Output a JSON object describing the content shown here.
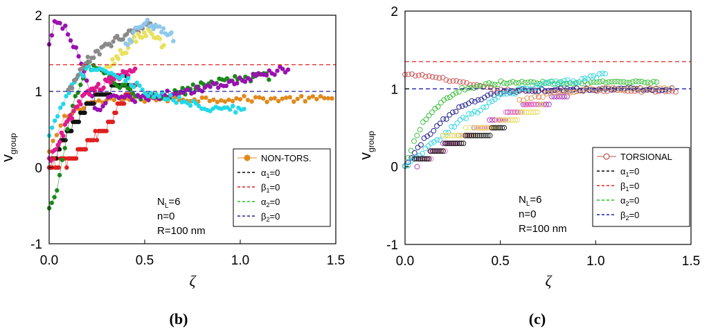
{
  "chart_data": [
    {
      "panel": "b",
      "type": "scatter",
      "panel_label": "(b)",
      "xlabel": "ζ",
      "ylabel": "v",
      "ylabel_sub": "group",
      "xlim": [
        0,
        1.5
      ],
      "ylim": [
        -1,
        2
      ],
      "xticks": [
        "0.0",
        "0.5",
        "1.0",
        "1.5"
      ],
      "yticks": [
        "-1",
        "0",
        "1",
        "2"
      ],
      "legend_position": "right-middle",
      "legend": [
        {
          "label": "NON-TORS.",
          "style": "line-marker",
          "color": "#e08a1e"
        },
        {
          "label": "α",
          "sub": "1",
          "suffix": "=0",
          "style": "dashed",
          "color": "#000000"
        },
        {
          "label": "β",
          "sub": "1",
          "suffix": "=0",
          "style": "dashed",
          "color": "#e02020"
        },
        {
          "label": "α",
          "sub": "2",
          "suffix": "=0",
          "style": "dashed",
          "color": "#20c020"
        },
        {
          "label": "β",
          "sub": "2",
          "suffix": "=0",
          "style": "dashed",
          "color": "#1f1fa0"
        }
      ],
      "annotations": [
        {
          "text": "N",
          "sub": "L",
          "suffix": "=6"
        },
        {
          "text": "n=0"
        },
        {
          "text": "R=100 nm"
        }
      ],
      "hlines": [
        {
          "name": "beta1",
          "y": 1.35,
          "color": "#e02020"
        },
        {
          "name": "beta2",
          "y": 1.0,
          "color": "#1f1fa0"
        }
      ],
      "series": [
        {
          "name": "orange",
          "color": "#e08a1e",
          "filled": true,
          "connect": true,
          "x0": 0.0,
          "x1": 1.48,
          "n": 75,
          "anchors": [
            [
              0.0,
              0.2
            ],
            [
              0.08,
              0.65
            ],
            [
              0.2,
              0.85
            ],
            [
              0.4,
              0.9
            ],
            [
              0.6,
              0.9
            ],
            [
              1.0,
              0.9
            ],
            [
              1.48,
              0.9
            ]
          ],
          "noise": 0.04,
          "step": 0
        },
        {
          "name": "black",
          "color": "#111111",
          "filled": true,
          "connect": true,
          "x0": 0.0,
          "x1": 0.42,
          "n": 55,
          "anchors": [
            [
              0.0,
              0.0
            ],
            [
              0.1,
              0.45
            ],
            [
              0.2,
              0.8
            ],
            [
              0.3,
              1.0
            ],
            [
              0.42,
              1.15
            ]
          ],
          "noise": 0.04,
          "step": 0.12
        },
        {
          "name": "red",
          "color": "#e02020",
          "filled": true,
          "connect": true,
          "x0": 0.0,
          "x1": 0.45,
          "n": 55,
          "anchors": [
            [
              0.0,
              0.0
            ],
            [
              0.1,
              0.1
            ],
            [
              0.2,
              0.3
            ],
            [
              0.3,
              0.55
            ],
            [
              0.38,
              0.85
            ],
            [
              0.45,
              1.1
            ]
          ],
          "noise": 0.04,
          "step": 0.12
        },
        {
          "name": "green",
          "color": "#1a8a1a",
          "filled": true,
          "connect": true,
          "x0": 0.0,
          "x1": 1.15,
          "n": 85,
          "anchors": [
            [
              0.0,
              -0.55
            ],
            [
              0.05,
              -0.2
            ],
            [
              0.12,
              0.8
            ],
            [
              0.2,
              1.35
            ],
            [
              0.3,
              1.2
            ],
            [
              0.5,
              0.9
            ],
            [
              0.7,
              1.0
            ],
            [
              0.9,
              1.15
            ],
            [
              1.15,
              1.2
            ]
          ],
          "noise": 0.05,
          "step": 0
        },
        {
          "name": "purple",
          "color": "#9a10b0",
          "filled": true,
          "connect": true,
          "x0": 0.0,
          "x1": 1.25,
          "n": 90,
          "anchors": [
            [
              0.0,
              1.6
            ],
            [
              0.03,
              1.95
            ],
            [
              0.08,
              1.85
            ],
            [
              0.15,
              1.5
            ],
            [
              0.25,
              0.7
            ],
            [
              0.3,
              0.9
            ],
            [
              0.45,
              0.9
            ],
            [
              0.7,
              1.0
            ],
            [
              1.0,
              1.15
            ],
            [
              1.25,
              1.3
            ]
          ],
          "noise": 0.05,
          "step": 0
        },
        {
          "name": "magenta",
          "color": "#e0198c",
          "filled": true,
          "connect": true,
          "x0": 0.0,
          "x1": 0.45,
          "n": 50,
          "anchors": [
            [
              0.0,
              0.1
            ],
            [
              0.1,
              0.6
            ],
            [
              0.2,
              1.0
            ],
            [
              0.3,
              1.1
            ],
            [
              0.45,
              1.3
            ]
          ],
          "noise": 0.06,
          "step": 0
        },
        {
          "name": "cyan",
          "color": "#22d8e8",
          "filled": true,
          "connect": true,
          "x0": 0.0,
          "x1": 1.02,
          "n": 70,
          "anchors": [
            [
              0.0,
              0.4
            ],
            [
              0.1,
              1.0
            ],
            [
              0.2,
              1.3
            ],
            [
              0.3,
              1.3
            ],
            [
              0.5,
              1.0
            ],
            [
              0.8,
              0.8
            ],
            [
              1.02,
              0.75
            ]
          ],
          "noise": 0.05,
          "step": 0
        },
        {
          "name": "gray",
          "color": "#8a8a8a",
          "filled": true,
          "connect": true,
          "x0": 0.1,
          "x1": 0.55,
          "n": 45,
          "anchors": [
            [
              0.1,
              1.0
            ],
            [
              0.2,
              1.4
            ],
            [
              0.3,
              1.6
            ],
            [
              0.4,
              1.75
            ],
            [
              0.55,
              1.9
            ]
          ],
          "noise": 0.05,
          "step": 0
        },
        {
          "name": "lightyellow",
          "color": "#e8e060",
          "filled": true,
          "connect": true,
          "x0": 0.3,
          "x1": 0.6,
          "n": 30,
          "anchors": [
            [
              0.3,
              1.3
            ],
            [
              0.4,
              1.55
            ],
            [
              0.5,
              1.8
            ],
            [
              0.6,
              1.6
            ]
          ],
          "noise": 0.06,
          "step": 0
        },
        {
          "name": "lightblue",
          "color": "#8fc8ee",
          "filled": true,
          "connect": true,
          "x0": 0.4,
          "x1": 0.65,
          "n": 25,
          "anchors": [
            [
              0.4,
              1.6
            ],
            [
              0.5,
              1.95
            ],
            [
              0.65,
              1.7
            ]
          ],
          "noise": 0.06,
          "step": 0
        }
      ]
    },
    {
      "panel": "c",
      "type": "scatter",
      "panel_label": "(c)",
      "xlabel": "ζ",
      "ylabel": "v",
      "ylabel_sub": "group",
      "xlim": [
        0,
        1.5
      ],
      "ylim": [
        -1,
        2
      ],
      "xticks": [
        "0.0",
        "0.5",
        "1.0",
        "1.5"
      ],
      "yticks": [
        "-1",
        "0",
        "1",
        "2"
      ],
      "legend_position": "right-middle",
      "legend": [
        {
          "label": "TORSIONAL",
          "style": "line-open-marker",
          "color": "#c05050"
        },
        {
          "label": "α",
          "sub": "1",
          "suffix": "=0",
          "style": "dashed",
          "color": "#000000"
        },
        {
          "label": "β",
          "sub": "1",
          "suffix": "=0",
          "style": "dashed",
          "color": "#e02020"
        },
        {
          "label": "α",
          "sub": "2",
          "suffix": "=0",
          "style": "dashed",
          "color": "#20c020"
        },
        {
          "label": "β",
          "sub": "2",
          "suffix": "=0",
          "style": "dashed",
          "color": "#1f1fa0"
        }
      ],
      "annotations": [
        {
          "text": "N",
          "sub": "L",
          "suffix": "=6"
        },
        {
          "text": "n=0"
        },
        {
          "text": "R=100 nm"
        }
      ],
      "hlines": [
        {
          "name": "beta1",
          "y": 1.35,
          "color": "#e02020"
        },
        {
          "name": "beta2",
          "y": 1.0,
          "color": "#1f1fa0"
        }
      ],
      "series": [
        {
          "name": "torsional-red",
          "color": "#d06060",
          "filled": false,
          "connect": false,
          "x0": 0.0,
          "x1": 1.42,
          "n": 80,
          "anchors": [
            [
              0.0,
              1.18
            ],
            [
              0.1,
              1.17
            ],
            [
              0.2,
              1.13
            ],
            [
              0.35,
              1.05
            ],
            [
              0.5,
              0.98
            ],
            [
              1.0,
              0.98
            ],
            [
              1.42,
              0.97
            ]
          ],
          "noise": 0.015,
          "step": 0
        },
        {
          "name": "green",
          "color": "#40c040",
          "filled": false,
          "connect": false,
          "x0": 0.0,
          "x1": 1.32,
          "n": 85,
          "anchors": [
            [
              0.0,
              0.0
            ],
            [
              0.05,
              0.35
            ],
            [
              0.1,
              0.6
            ],
            [
              0.2,
              0.85
            ],
            [
              0.3,
              1.0
            ],
            [
              0.5,
              1.08
            ],
            [
              1.0,
              1.08
            ],
            [
              1.32,
              1.08
            ]
          ],
          "noise": 0.02,
          "step": 0
        },
        {
          "name": "navy",
          "color": "#2a2a90",
          "filled": false,
          "connect": false,
          "x0": 0.0,
          "x1": 1.4,
          "n": 85,
          "anchors": [
            [
              0.0,
              0.0
            ],
            [
              0.1,
              0.35
            ],
            [
              0.2,
              0.6
            ],
            [
              0.3,
              0.78
            ],
            [
              0.45,
              0.93
            ],
            [
              0.6,
              0.98
            ],
            [
              1.0,
              1.0
            ],
            [
              1.4,
              1.0
            ]
          ],
          "noise": 0.02,
          "step": 0
        },
        {
          "name": "cyan",
          "color": "#3ad8e0",
          "filled": false,
          "connect": false,
          "x0": 0.0,
          "x1": 1.05,
          "n": 70,
          "anchors": [
            [
              0.0,
              0.0
            ],
            [
              0.15,
              0.3
            ],
            [
              0.3,
              0.6
            ],
            [
              0.5,
              0.9
            ],
            [
              0.7,
              1.05
            ],
            [
              0.9,
              1.1
            ],
            [
              1.05,
              1.2
            ]
          ],
          "noise": 0.03,
          "step": 0
        },
        {
          "name": "purple",
          "color": "#b040c0",
          "filled": false,
          "connect": false,
          "x0": 0.05,
          "x1": 0.85,
          "n": 60,
          "anchors": [
            [
              0.05,
              0.05
            ],
            [
              0.2,
              0.25
            ],
            [
              0.4,
              0.5
            ],
            [
              0.6,
              0.75
            ],
            [
              0.85,
              0.9
            ]
          ],
          "noise": 0.02,
          "step": 0.1
        },
        {
          "name": "pink",
          "color": "#f080c0",
          "filled": false,
          "connect": false,
          "x0": 0.1,
          "x1": 0.7,
          "n": 50,
          "anchors": [
            [
              0.1,
              0.1
            ],
            [
              0.3,
              0.35
            ],
            [
              0.5,
              0.6
            ],
            [
              0.7,
              0.85
            ]
          ],
          "noise": 0.02,
          "step": 0.1
        },
        {
          "name": "lightyellow",
          "color": "#e8e070",
          "filled": false,
          "connect": false,
          "x0": 0.2,
          "x1": 0.72,
          "n": 45,
          "anchors": [
            [
              0.2,
              0.35
            ],
            [
              0.4,
              0.5
            ],
            [
              0.55,
              0.6
            ],
            [
              0.72,
              0.75
            ]
          ],
          "noise": 0.03,
          "step": 0.1
        },
        {
          "name": "black",
          "color": "#222222",
          "filled": false,
          "connect": false,
          "x0": 0.05,
          "x1": 0.52,
          "n": 45,
          "anchors": [
            [
              0.05,
              0.05
            ],
            [
              0.2,
              0.25
            ],
            [
              0.35,
              0.4
            ],
            [
              0.52,
              0.5
            ]
          ],
          "noise": 0.02,
          "step": 0.1
        },
        {
          "name": "orange",
          "color": "#e0a060",
          "filled": false,
          "connect": false,
          "x0": 0.6,
          "x1": 1.4,
          "n": 40,
          "anchors": [
            [
              0.6,
              0.85
            ],
            [
              0.8,
              0.95
            ],
            [
              1.0,
              1.0
            ],
            [
              1.4,
              1.0
            ]
          ],
          "noise": 0.02,
          "step": 0
        }
      ]
    }
  ]
}
